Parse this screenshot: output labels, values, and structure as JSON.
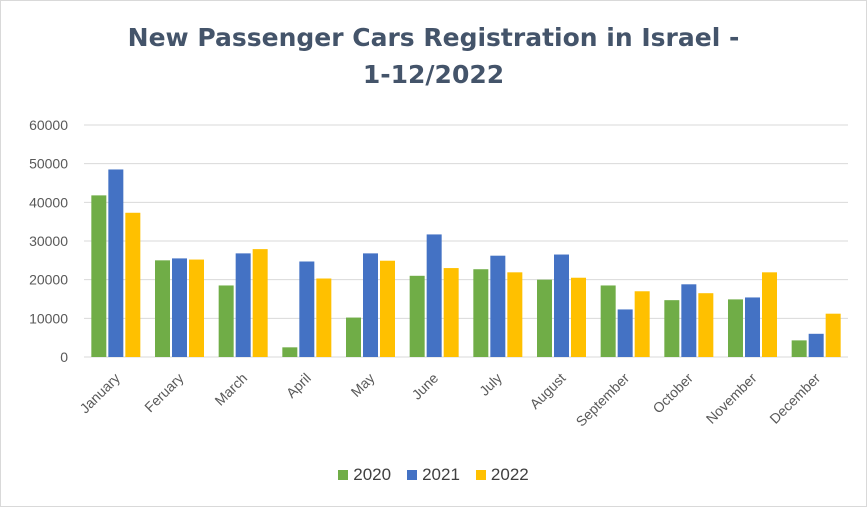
{
  "chart_data": {
    "type": "bar",
    "title_lines": [
      "New Passenger Cars Registration in Israel -",
      "1-12/2022"
    ],
    "categories": [
      "January",
      "Feruary",
      "March",
      "April",
      "May",
      "June",
      "July",
      "August",
      "September",
      "October",
      "November",
      "December"
    ],
    "series": [
      {
        "name": "2020",
        "color": "#70ad47",
        "values": [
          41800,
          25000,
          18500,
          2500,
          10200,
          21000,
          22700,
          20000,
          18500,
          14700,
          14900,
          4300
        ]
      },
      {
        "name": "2021",
        "color": "#4472c4",
        "values": [
          48500,
          25500,
          26800,
          24700,
          26800,
          31700,
          26200,
          26500,
          12300,
          18800,
          15400,
          6000
        ]
      },
      {
        "name": "2022",
        "color": "#ffc000",
        "values": [
          37300,
          25200,
          27900,
          20300,
          24900,
          23000,
          21900,
          20500,
          17000,
          16500,
          21900,
          11200
        ]
      }
    ],
    "y_ticks": [
      "0",
      "10000",
      "20000",
      "30000",
      "40000",
      "50000",
      "60000"
    ],
    "ylim": [
      0,
      60000
    ],
    "grid": true,
    "legend_position": "bottom"
  }
}
